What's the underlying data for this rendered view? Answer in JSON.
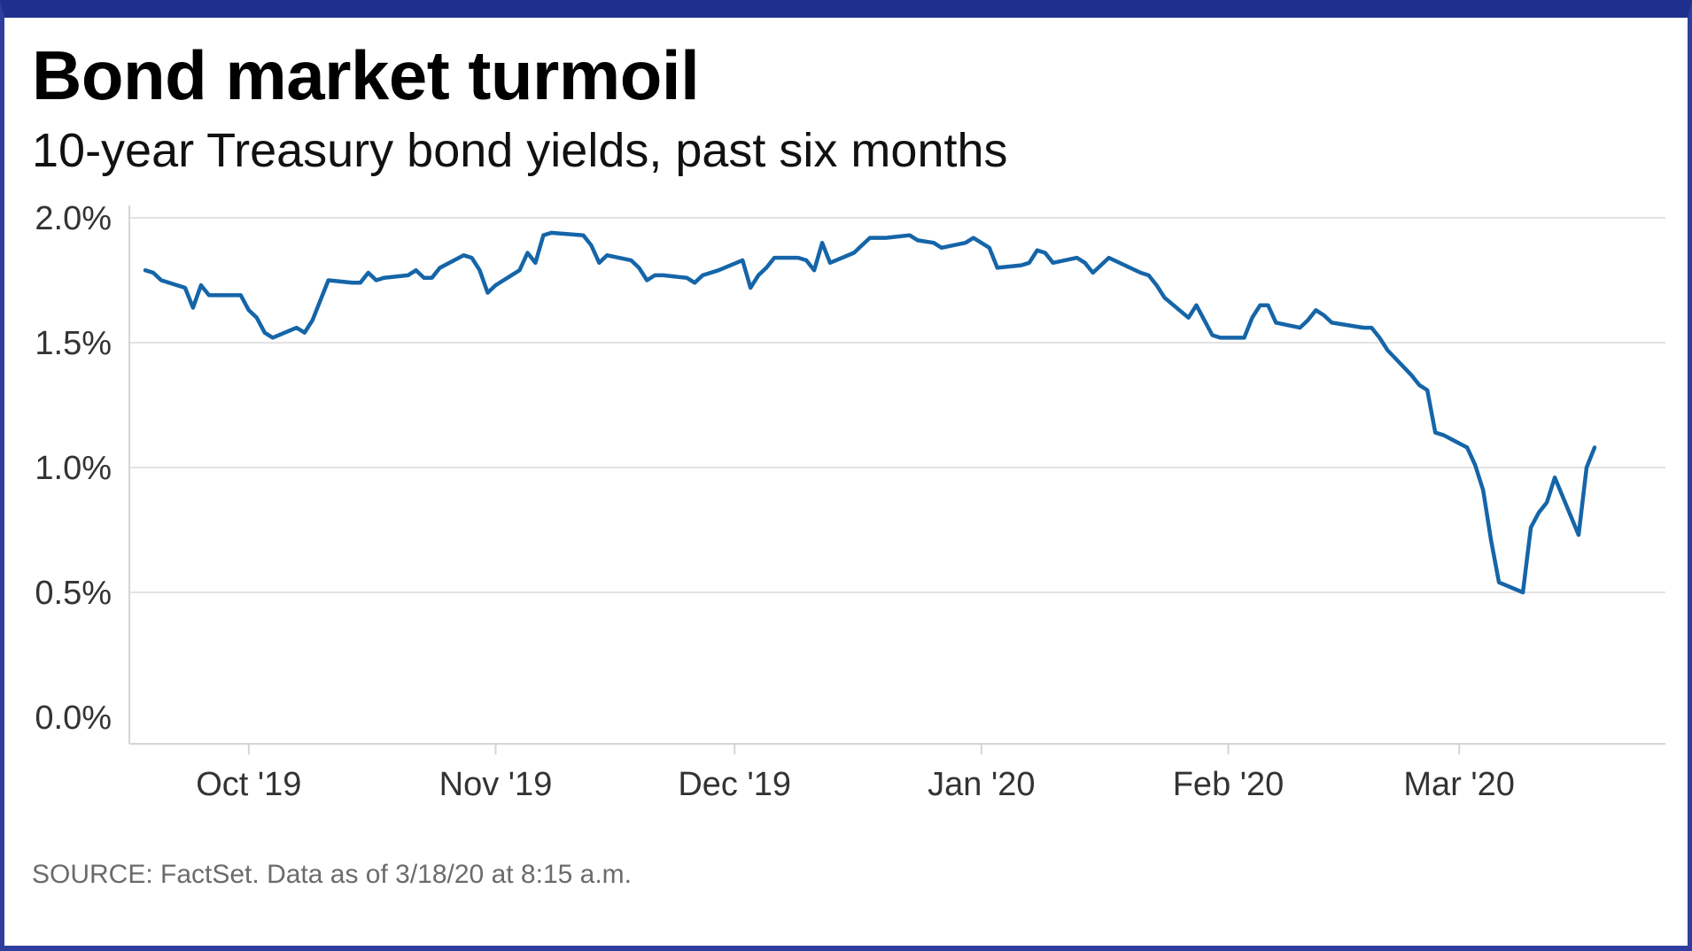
{
  "header": {
    "title": "Bond market turmoil",
    "subtitle": "10-year Treasury bond yields, past six months"
  },
  "footer": {
    "source": "SOURCE: FactSet. Data as of 3/18/20 at 8:15 a.m."
  },
  "colors": {
    "line": "#1565a8",
    "grid": "#e3e3e3",
    "axis": "#d5d5d5",
    "frame": "#2f3e9e"
  },
  "chart_data": {
    "type": "line",
    "title": "Bond market turmoil",
    "subtitle": "10-year Treasury bond yields, past six months",
    "xlabel": "",
    "ylabel": "",
    "ylim": [
      0,
      2.0
    ],
    "y_ticks": [
      0.0,
      0.5,
      1.0,
      1.5,
      2.0
    ],
    "y_tick_labels": [
      "0.0%",
      "0.5%",
      "1.0%",
      "1.5%",
      "2.0%"
    ],
    "x_range": [
      "2019-09-16",
      "2020-03-18"
    ],
    "x_ticks": [
      "2019-10-01",
      "2019-11-01",
      "2019-12-01",
      "2020-01-01",
      "2020-02-01",
      "2020-03-01"
    ],
    "x_tick_labels": [
      "Oct '19",
      "Nov '19",
      "Dec '19",
      "Jan '20",
      "Feb '20",
      "Mar '20"
    ],
    "grid": true,
    "series": [
      {
        "name": "10-year Treasury yield (%)",
        "x": [
          "2019-09-18",
          "2019-09-19",
          "2019-09-20",
          "2019-09-23",
          "2019-09-24",
          "2019-09-25",
          "2019-09-26",
          "2019-09-27",
          "2019-09-30",
          "2019-10-01",
          "2019-10-02",
          "2019-10-03",
          "2019-10-04",
          "2019-10-07",
          "2019-10-08",
          "2019-10-09",
          "2019-10-10",
          "2019-10-11",
          "2019-10-14",
          "2019-10-15",
          "2019-10-16",
          "2019-10-17",
          "2019-10-18",
          "2019-10-21",
          "2019-10-22",
          "2019-10-23",
          "2019-10-24",
          "2019-10-25",
          "2019-10-28",
          "2019-10-29",
          "2019-10-30",
          "2019-10-31",
          "2019-11-01",
          "2019-11-04",
          "2019-11-05",
          "2019-11-06",
          "2019-11-07",
          "2019-11-08",
          "2019-11-12",
          "2019-11-13",
          "2019-11-14",
          "2019-11-15",
          "2019-11-18",
          "2019-11-19",
          "2019-11-20",
          "2019-11-21",
          "2019-11-22",
          "2019-11-25",
          "2019-11-26",
          "2019-11-27",
          "2019-11-29",
          "2019-12-02",
          "2019-12-03",
          "2019-12-04",
          "2019-12-05",
          "2019-12-06",
          "2019-12-09",
          "2019-12-10",
          "2019-12-11",
          "2019-12-12",
          "2019-12-13",
          "2019-12-16",
          "2019-12-17",
          "2019-12-18",
          "2019-12-19",
          "2019-12-20",
          "2019-12-23",
          "2019-12-24",
          "2019-12-26",
          "2019-12-27",
          "2019-12-30",
          "2019-12-31",
          "2020-01-02",
          "2020-01-03",
          "2020-01-06",
          "2020-01-07",
          "2020-01-08",
          "2020-01-09",
          "2020-01-10",
          "2020-01-13",
          "2020-01-14",
          "2020-01-15",
          "2020-01-16",
          "2020-01-17",
          "2020-01-21",
          "2020-01-22",
          "2020-01-23",
          "2020-01-24",
          "2020-01-27",
          "2020-01-28",
          "2020-01-29",
          "2020-01-30",
          "2020-01-31",
          "2020-02-03",
          "2020-02-04",
          "2020-02-05",
          "2020-02-06",
          "2020-02-07",
          "2020-02-10",
          "2020-02-11",
          "2020-02-12",
          "2020-02-13",
          "2020-02-14",
          "2020-02-18",
          "2020-02-19",
          "2020-02-20",
          "2020-02-21",
          "2020-02-24",
          "2020-02-25",
          "2020-02-26",
          "2020-02-27",
          "2020-02-28",
          "2020-03-02",
          "2020-03-03",
          "2020-03-04",
          "2020-03-05",
          "2020-03-06",
          "2020-03-09",
          "2020-03-10",
          "2020-03-11",
          "2020-03-12",
          "2020-03-13",
          "2020-03-16",
          "2020-03-17",
          "2020-03-18"
        ],
        "values": [
          1.79,
          1.78,
          1.75,
          1.72,
          1.64,
          1.73,
          1.69,
          1.69,
          1.69,
          1.63,
          1.6,
          1.54,
          1.52,
          1.56,
          1.54,
          1.59,
          1.67,
          1.75,
          1.74,
          1.74,
          1.78,
          1.75,
          1.76,
          1.77,
          1.79,
          1.76,
          1.76,
          1.8,
          1.85,
          1.84,
          1.79,
          1.7,
          1.73,
          1.79,
          1.86,
          1.82,
          1.93,
          1.94,
          1.93,
          1.89,
          1.82,
          1.85,
          1.83,
          1.8,
          1.75,
          1.77,
          1.77,
          1.76,
          1.74,
          1.77,
          1.79,
          1.83,
          1.72,
          1.77,
          1.8,
          1.84,
          1.84,
          1.83,
          1.79,
          1.9,
          1.82,
          1.86,
          1.89,
          1.92,
          1.92,
          1.92,
          1.93,
          1.91,
          1.9,
          1.88,
          1.9,
          1.92,
          1.88,
          1.8,
          1.81,
          1.82,
          1.87,
          1.86,
          1.82,
          1.84,
          1.82,
          1.78,
          1.81,
          1.84,
          1.78,
          1.77,
          1.73,
          1.68,
          1.6,
          1.65,
          1.59,
          1.53,
          1.52,
          1.52,
          1.6,
          1.65,
          1.65,
          1.58,
          1.56,
          1.59,
          1.63,
          1.61,
          1.58,
          1.56,
          1.56,
          1.52,
          1.47,
          1.37,
          1.33,
          1.31,
          1.14,
          1.13,
          1.08,
          1.01,
          0.91,
          0.71,
          0.54,
          0.5,
          0.76,
          0.82,
          0.86,
          0.96,
          0.73,
          1.0,
          1.08
        ]
      }
    ],
    "source": "SOURCE: FactSet. Data as of 3/18/20 at 8:15 a.m."
  }
}
